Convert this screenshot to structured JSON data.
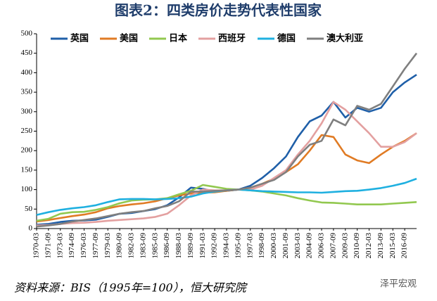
{
  "chart_data": {
    "type": "line",
    "title": "图表2：四类房价走势代表性国家",
    "source": "资料来源：BIS（1995年=100），恒大研究院",
    "watermark": "泽平宏观",
    "categories": [
      "1970-03",
      "1971-09",
      "1973-03",
      "1974-09",
      "1976-03",
      "1977-09",
      "1979-03",
      "1980-09",
      "1982-03",
      "1983-09",
      "1985-03",
      "1986-09",
      "1988-03",
      "1989-09",
      "1991-03",
      "1992-09",
      "1994-03",
      "1995-09",
      "1997-03",
      "1998-09",
      "2000-03",
      "2001-09",
      "2003-03",
      "2004-09",
      "2006-03",
      "2007-09",
      "2009-03",
      "2010-09",
      "2012-03",
      "2013-09",
      "2015-03",
      "2016-09",
      null
    ],
    "series": [
      {
        "name": "英国",
        "color": "#1f5fa8",
        "values": [
          10,
          12,
          17,
          20,
          21,
          23,
          30,
          38,
          40,
          45,
          50,
          60,
          80,
          105,
          102,
          95,
          97,
          100,
          110,
          130,
          155,
          185,
          235,
          275,
          290,
          325,
          285,
          310,
          300,
          310,
          350,
          375,
          395
        ]
      },
      {
        "name": "美国",
        "color": "#e07b24",
        "values": [
          18,
          22,
          27,
          32,
          36,
          42,
          52,
          58,
          62,
          65,
          70,
          78,
          85,
          90,
          92,
          93,
          97,
          100,
          105,
          115,
          128,
          145,
          165,
          200,
          240,
          235,
          190,
          175,
          168,
          190,
          210,
          225,
          245
        ]
      },
      {
        "name": "日本",
        "color": "#92c84f",
        "values": [
          20,
          25,
          38,
          42,
          43,
          48,
          55,
          65,
          72,
          74,
          75,
          78,
          88,
          97,
          112,
          107,
          102,
          100,
          98,
          95,
          90,
          85,
          78,
          72,
          67,
          66,
          64,
          62,
          62,
          62,
          64,
          66,
          68
        ]
      },
      {
        "name": "西班牙",
        "color": "#e3a0a0",
        "values": [
          8,
          9,
          12,
          14,
          15,
          17,
          20,
          22,
          24,
          26,
          30,
          38,
          60,
          85,
          100,
          98,
          98,
          100,
          100,
          110,
          130,
          150,
          190,
          225,
          270,
          325,
          305,
          275,
          245,
          210,
          210,
          222,
          245
        ]
      },
      {
        "name": "德国",
        "color": "#1fb0e0",
        "values": [
          35,
          42,
          48,
          52,
          55,
          60,
          68,
          75,
          76,
          76,
          75,
          76,
          78,
          82,
          90,
          95,
          98,
          100,
          98,
          96,
          95,
          94,
          93,
          93,
          92,
          94,
          96,
          97,
          100,
          104,
          110,
          117,
          128
        ]
      },
      {
        "name": "澳大利亚",
        "color": "#7f7f7f",
        "values": [
          5,
          8,
          12,
          18,
          22,
          26,
          32,
          38,
          42,
          45,
          52,
          58,
          70,
          95,
          95,
          97,
          98,
          100,
          105,
          115,
          125,
          145,
          185,
          215,
          225,
          280,
          265,
          315,
          305,
          320,
          365,
          410,
          450
        ]
      }
    ],
    "ylim": [
      0,
      500
    ],
    "yticks": [
      0,
      50,
      100,
      150,
      200,
      250,
      300,
      350,
      400,
      450,
      500
    ],
    "legend": "top",
    "grid": false
  }
}
